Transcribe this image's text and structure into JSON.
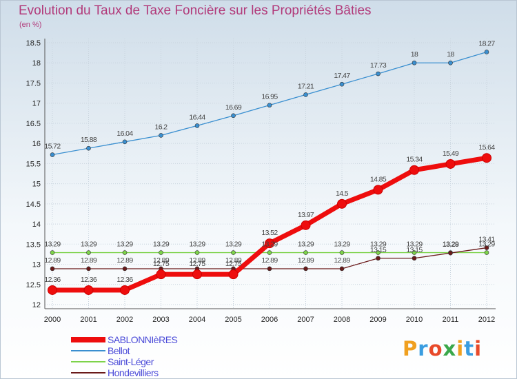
{
  "title": "Evolution du Taux de Taxe Foncière sur les Propriétés Bâties",
  "subtitle": "(en %)",
  "brand": {
    "text": [
      "P",
      "r",
      "o",
      "x",
      "i",
      "t",
      "i"
    ],
    "colors": [
      "#f0a020",
      "#3a9de0",
      "#e84a2a",
      "#3aa84a",
      "#f0a020",
      "#3a9de0",
      "#e84a2a"
    ]
  },
  "chart_data": {
    "type": "line",
    "title": "Evolution du Taux de Taxe Foncière sur les Propriétés Bâties",
    "ylabel": "(en %)",
    "xlabel": "",
    "categories": [
      "2000",
      "2001",
      "2002",
      "2003",
      "2004",
      "2005",
      "2006",
      "2007",
      "2008",
      "2009",
      "2010",
      "2011",
      "2012"
    ],
    "ylim": [
      12,
      18.5
    ],
    "yticks": [
      "12",
      "12.5",
      "13",
      "13.5",
      "14",
      "14.5",
      "15",
      "15.5",
      "16",
      "16.5",
      "17",
      "17.5",
      "18",
      "18.5"
    ],
    "series": [
      {
        "name": "SABLONNIèRES",
        "color": "#ee0d0d",
        "emphasis": true,
        "values": [
          12.36,
          12.36,
          12.36,
          12.75,
          12.75,
          12.75,
          13.52,
          13.97,
          14.5,
          14.85,
          15.34,
          15.49,
          15.64
        ],
        "labels": [
          "12.36",
          "12.36",
          "12.36",
          "12.75",
          "12.75",
          "12.75",
          "13.52",
          "13.97",
          "14.5",
          "14.85",
          "15.34",
          "15.49",
          "15.64"
        ]
      },
      {
        "name": "Bellot",
        "color": "#3a8fd0",
        "values": [
          15.72,
          15.88,
          16.04,
          16.2,
          16.44,
          16.69,
          16.95,
          17.21,
          17.47,
          17.73,
          18,
          18,
          18.27
        ],
        "labels": [
          "15.72",
          "15.88",
          "16.04",
          "16.2",
          "16.44",
          "16.69",
          "16.95",
          "17.21",
          "17.47",
          "17.73",
          "18",
          "18",
          "18.27"
        ]
      },
      {
        "name": "Saint-Léger",
        "color": "#7dd34a",
        "values": [
          13.29,
          13.29,
          13.29,
          13.29,
          13.29,
          13.29,
          13.29,
          13.29,
          13.29,
          13.29,
          13.29,
          13.29,
          13.29
        ],
        "labels": [
          "13.29",
          "13.29",
          "13.29",
          "13.29",
          "13.29",
          "13.29",
          "13.29",
          "13.29",
          "13.29",
          "13.29",
          "13.29",
          "13.29",
          "13.29"
        ]
      },
      {
        "name": "Hondevilliers",
        "color": "#6a1a1a",
        "values": [
          12.89,
          12.89,
          12.89,
          12.89,
          12.89,
          12.89,
          12.89,
          12.89,
          12.89,
          13.15,
          13.15,
          13.28,
          13.41
        ],
        "labels": [
          "12.89",
          "12.89",
          "12.89",
          "12.89",
          "12.89",
          "12.89",
          "12.89",
          "12.89",
          "12.89",
          "13.15",
          "13.15",
          "13.28",
          "13.41"
        ]
      }
    ]
  }
}
